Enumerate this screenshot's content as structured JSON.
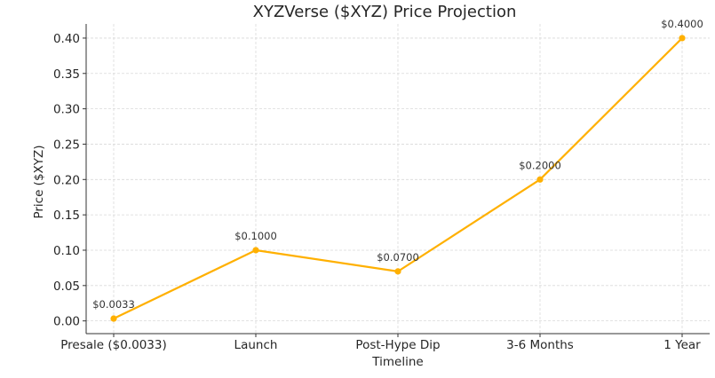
{
  "chart_data": {
    "type": "line",
    "title": "XYZVerse ($XYZ) Price Projection",
    "xlabel": "Timeline",
    "ylabel": "Price ($XYZ)",
    "categories": [
      "Presale ($0.0033)",
      "Launch",
      "Post-Hype Dip",
      "3-6 Months",
      "1 Year"
    ],
    "values": [
      0.0033,
      0.1,
      0.07,
      0.2,
      0.4
    ],
    "data_labels": [
      "$0.0033",
      "$0.1000",
      "$0.0700",
      "$0.2000",
      "$0.4000"
    ],
    "ylim": [
      -0.018,
      0.42
    ],
    "yticks": [
      0.0,
      0.05,
      0.1,
      0.15,
      0.2,
      0.25,
      0.3,
      0.35,
      0.4
    ],
    "ytick_labels": [
      "0.00",
      "0.05",
      "0.10",
      "0.15",
      "0.20",
      "0.25",
      "0.30",
      "0.35",
      "0.40"
    ],
    "grid": true,
    "line_color": "#FFB000",
    "marker": "circle"
  }
}
